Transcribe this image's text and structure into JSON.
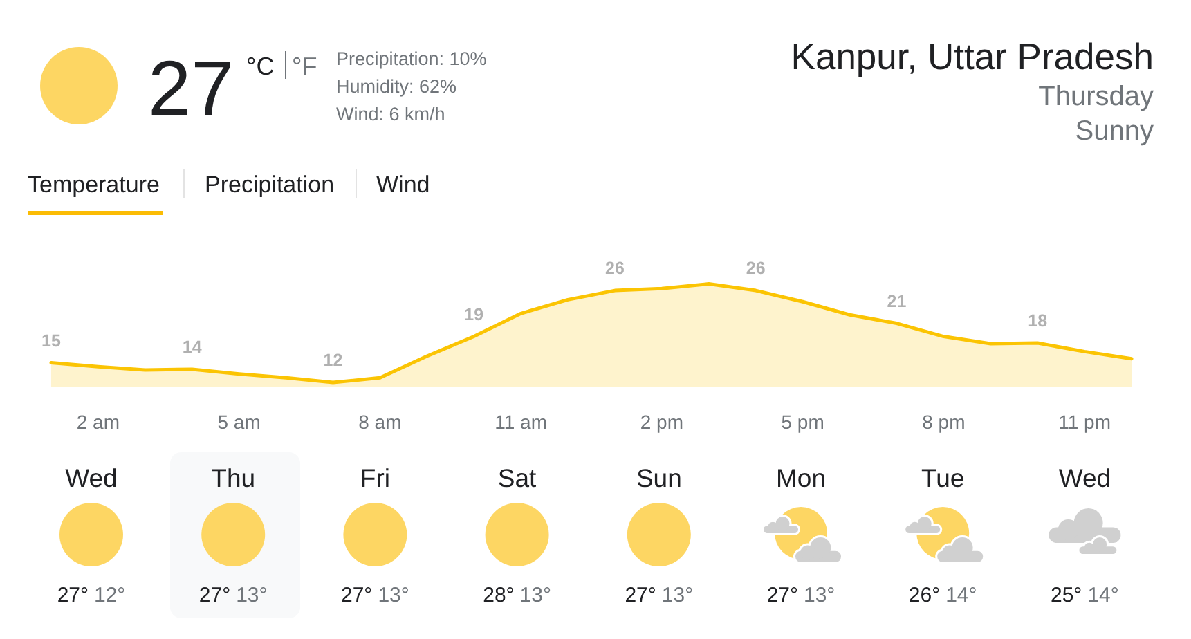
{
  "chart_data": {
    "type": "area",
    "title": "Kanpur, Uttar Pradesh",
    "subtitle": "Thursday",
    "categories": [
      null,
      "2 am",
      null,
      null,
      "5 am",
      null,
      null,
      "8 am",
      null,
      null,
      "11 am",
      null,
      null,
      "2 pm",
      null,
      null,
      "5 pm",
      null,
      null,
      "8 pm",
      null,
      null,
      "11 pm",
      null
    ],
    "values": [
      15,
      14.4,
      13.9,
      14,
      13.3,
      12.7,
      12,
      12.7,
      16,
      19,
      22.5,
      24.6,
      26,
      26.3,
      27,
      26,
      24.3,
      22.3,
      21,
      19,
      17.9,
      18,
      16.7,
      15.6
    ],
    "value_labels": [
      "15",
      null,
      null,
      "14",
      null,
      null,
      "12",
      null,
      null,
      "19",
      null,
      null,
      "26",
      null,
      null,
      "26",
      null,
      null,
      "21",
      null,
      null,
      "18",
      null,
      null
    ],
    "color": "#fbc403",
    "tick_labels": "x",
    "annotations": [
      "27",
      "°C",
      "°F",
      "Precipitation: 10%",
      "Humidity: 62%",
      "Wind: 6 km/h",
      "Sunny",
      "Temperature",
      "Precipitation",
      "Wind",
      "Wed",
      "27°",
      "12°",
      "Thu",
      "27°",
      "13°",
      "Fri",
      "27°",
      "13°",
      "Sat",
      "28°",
      "13°",
      "Sun",
      "27°",
      "13°",
      "Mon",
      "27°",
      "13°",
      "Tue",
      "26°",
      "14°",
      "Wed",
      "25°",
      "14°"
    ]
  }
}
